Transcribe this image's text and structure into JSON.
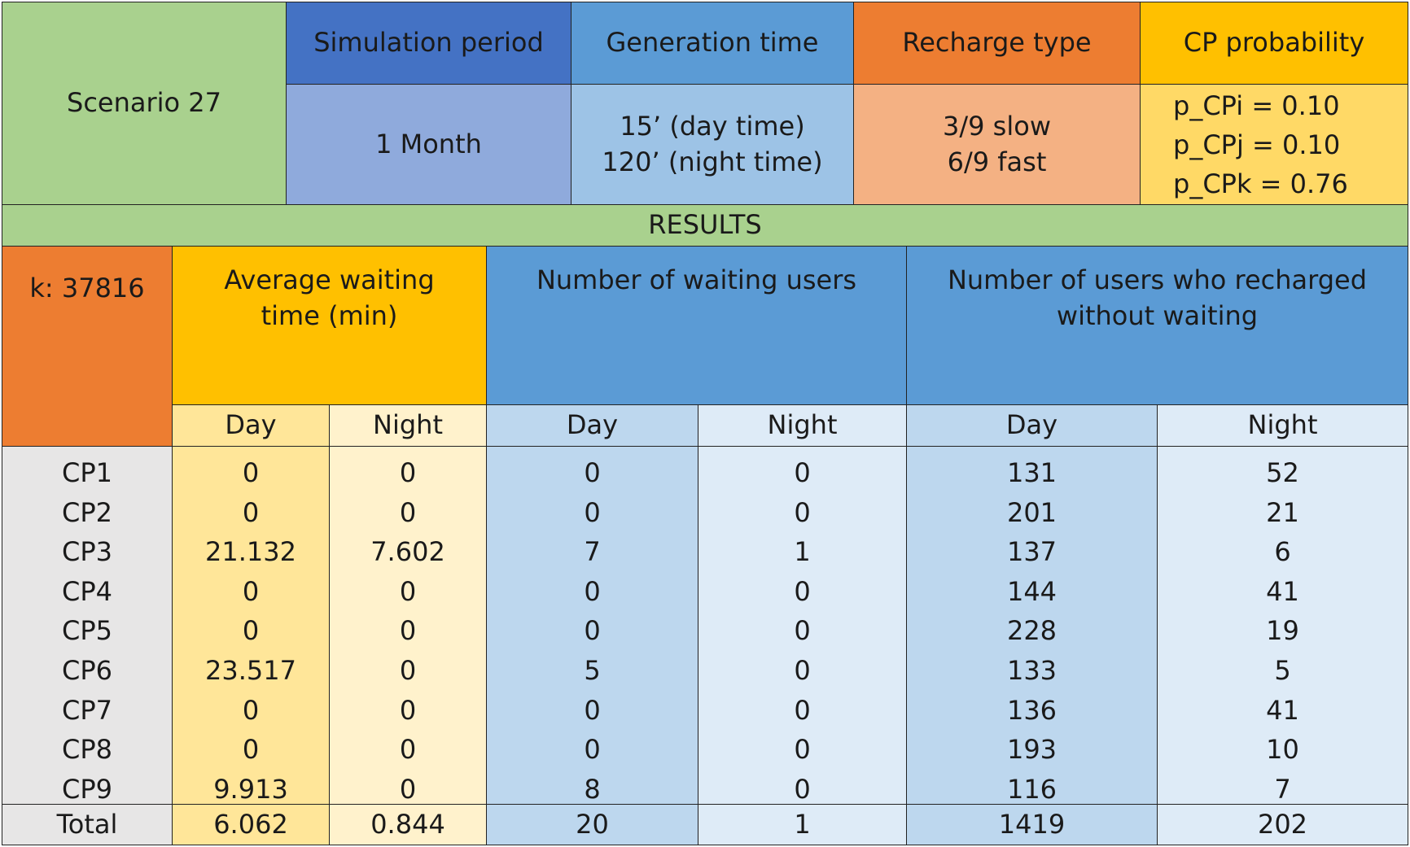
{
  "scenario": {
    "label": "Scenario 27"
  },
  "params": {
    "simulation_period": {
      "header": "Simulation period",
      "value": "1 Month"
    },
    "generation_time": {
      "header": "Generation time",
      "value": "15’ (day time)\n120’ (night time)"
    },
    "recharge_type": {
      "header": "Recharge type",
      "value": "3/9 slow\n6/9 fast"
    },
    "cp_probability": {
      "header": "CP probability",
      "value": "p_CPi = 0.10\np_CPj = 0.10\np_CPk = 0.76"
    }
  },
  "results_label": "RESULTS",
  "k_label": "k: 37816",
  "groups": {
    "avg_wait": "Average waiting\ntime (min)",
    "waiting_users": "Number of waiting users",
    "no_wait_users": "Number of users who recharged\nwithout waiting"
  },
  "sub": {
    "day": "Day",
    "night": "Night"
  },
  "rows": [
    {
      "cp": "CP1",
      "avg_day": "0",
      "avg_night": "0",
      "wait_day": "0",
      "wait_night": "0",
      "nowait_day": "131",
      "nowait_night": "52"
    },
    {
      "cp": "CP2",
      "avg_day": "0",
      "avg_night": "0",
      "wait_day": "0",
      "wait_night": "0",
      "nowait_day": "201",
      "nowait_night": "21"
    },
    {
      "cp": "CP3",
      "avg_day": "21.132",
      "avg_night": "7.602",
      "wait_day": "7",
      "wait_night": "1",
      "nowait_day": "137",
      "nowait_night": "6"
    },
    {
      "cp": "CP4",
      "avg_day": "0",
      "avg_night": "0",
      "wait_day": "0",
      "wait_night": "0",
      "nowait_day": "144",
      "nowait_night": "41"
    },
    {
      "cp": "CP5",
      "avg_day": "0",
      "avg_night": "0",
      "wait_day": "0",
      "wait_night": "0",
      "nowait_day": "228",
      "nowait_night": "19"
    },
    {
      "cp": "CP6",
      "avg_day": "23.517",
      "avg_night": "0",
      "wait_day": "5",
      "wait_night": "0",
      "nowait_day": "133",
      "nowait_night": "5"
    },
    {
      "cp": "CP7",
      "avg_day": "0",
      "avg_night": "0",
      "wait_day": "0",
      "wait_night": "0",
      "nowait_day": "136",
      "nowait_night": "41"
    },
    {
      "cp": "CP8",
      "avg_day": "0",
      "avg_night": "0",
      "wait_day": "0",
      "wait_night": "0",
      "nowait_day": "193",
      "nowait_night": "10"
    },
    {
      "cp": "CP9",
      "avg_day": "9.913",
      "avg_night": "0",
      "wait_day": "8",
      "wait_night": "0",
      "nowait_day": "116",
      "nowait_night": "7"
    }
  ],
  "total": {
    "label": "Total",
    "avg_day": "6.062",
    "avg_night": "0.844",
    "wait_day": "20",
    "wait_night": "1",
    "nowait_day": "1419",
    "nowait_night": "202"
  },
  "colors": {
    "green": "#a9d18e",
    "dark_blue": "#4472c4",
    "light_dark_blue": "#8faadc",
    "mid_blue": "#5b9bd5",
    "light_mid_blue": "#9dc3e6",
    "orange": "#ed7d31",
    "light_orange": "#f4b183",
    "gold": "#ffc000",
    "light_gold": "#ffd966",
    "pale_gold": "#ffe699",
    "cream": "#fff2cc",
    "blue_day": "#bdd7ee",
    "blue_night": "#deebf7",
    "gray": "#e7e6e6"
  }
}
